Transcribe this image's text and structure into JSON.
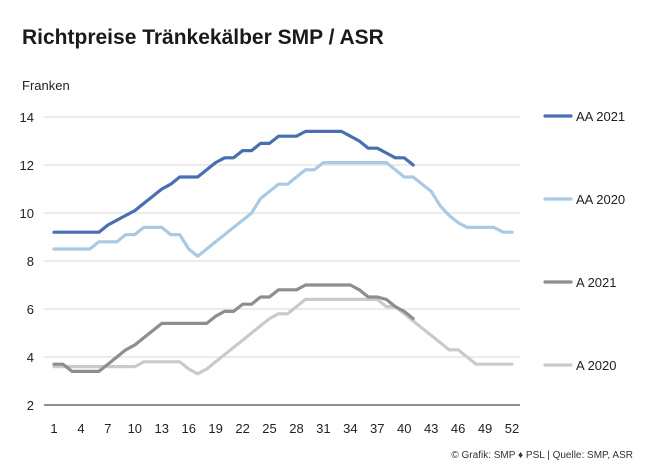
{
  "chart_data": {
    "type": "line",
    "title": "Richtpreise Tränkekälber SMP / ASR",
    "ylabel": "Franken",
    "xlabel": "",
    "ylim": [
      2,
      14
    ],
    "yticks": [
      "2",
      "4",
      "6",
      "8",
      "10",
      "12",
      "14"
    ],
    "xticks": [
      "1",
      "4",
      "7",
      "10",
      "13",
      "16",
      "19",
      "22",
      "25",
      "28",
      "31",
      "34",
      "37",
      "40",
      "43",
      "46",
      "49",
      "52"
    ],
    "grid": "horizontal",
    "legend": "right",
    "source": "© Grafik: SMP ♦ PSL | Quelle: SMP, ASR",
    "series": [
      {
        "name": "AA 2021",
        "color": "#4a6fb0",
        "x": [
          1,
          2,
          3,
          4,
          5,
          6,
          7,
          8,
          9,
          10,
          11,
          12,
          13,
          14,
          15,
          16,
          17,
          18,
          19,
          20,
          21,
          22,
          23,
          24,
          25,
          26,
          27,
          28,
          29,
          30,
          31,
          32,
          33,
          34,
          35,
          36,
          37,
          38,
          39,
          40,
          41
        ],
        "values": [
          9.2,
          9.2,
          9.2,
          9.2,
          9.2,
          9.2,
          9.5,
          9.7,
          9.9,
          10.1,
          10.4,
          10.7,
          11.0,
          11.2,
          11.5,
          11.5,
          11.5,
          11.8,
          12.1,
          12.3,
          12.3,
          12.6,
          12.6,
          12.9,
          12.9,
          13.2,
          13.2,
          13.2,
          13.4,
          13.4,
          13.4,
          13.4,
          13.4,
          13.2,
          13.0,
          12.7,
          12.7,
          12.5,
          12.3,
          12.3,
          12.0
        ]
      },
      {
        "name": "AA 2020",
        "color": "#a9cae6",
        "x": [
          1,
          2,
          3,
          4,
          5,
          6,
          7,
          8,
          9,
          10,
          11,
          12,
          13,
          14,
          15,
          16,
          17,
          18,
          19,
          20,
          21,
          22,
          23,
          24,
          25,
          26,
          27,
          28,
          29,
          30,
          31,
          32,
          33,
          34,
          35,
          36,
          37,
          38,
          39,
          40,
          41,
          42,
          43,
          44,
          45,
          46,
          47,
          48,
          49,
          50,
          51,
          52
        ],
        "values": [
          8.5,
          8.5,
          8.5,
          8.5,
          8.5,
          8.8,
          8.8,
          8.8,
          9.1,
          9.1,
          9.4,
          9.4,
          9.4,
          9.1,
          9.1,
          8.5,
          8.2,
          8.5,
          8.8,
          9.1,
          9.4,
          9.7,
          10.0,
          10.6,
          10.9,
          11.2,
          11.2,
          11.5,
          11.8,
          11.8,
          12.1,
          12.1,
          12.1,
          12.1,
          12.1,
          12.1,
          12.1,
          12.1,
          11.8,
          11.5,
          11.5,
          11.2,
          10.9,
          10.3,
          9.9,
          9.6,
          9.4,
          9.4,
          9.4,
          9.4,
          9.2,
          9.2
        ]
      },
      {
        "name": "A 2021",
        "color": "#8c8e91",
        "x": [
          1,
          2,
          3,
          4,
          5,
          6,
          7,
          8,
          9,
          10,
          11,
          12,
          13,
          14,
          15,
          16,
          17,
          18,
          19,
          20,
          21,
          22,
          23,
          24,
          25,
          26,
          27,
          28,
          29,
          30,
          31,
          32,
          33,
          34,
          35,
          36,
          37,
          38,
          39,
          40,
          41
        ],
        "values": [
          3.7,
          3.7,
          3.4,
          3.4,
          3.4,
          3.4,
          3.7,
          4.0,
          4.3,
          4.5,
          4.8,
          5.1,
          5.4,
          5.4,
          5.4,
          5.4,
          5.4,
          5.4,
          5.7,
          5.9,
          5.9,
          6.2,
          6.2,
          6.5,
          6.5,
          6.8,
          6.8,
          6.8,
          7.0,
          7.0,
          7.0,
          7.0,
          7.0,
          7.0,
          6.8,
          6.5,
          6.5,
          6.4,
          6.1,
          5.9,
          5.6
        ]
      },
      {
        "name": "A 2020",
        "color": "#c9cacc",
        "x": [
          1,
          2,
          3,
          4,
          5,
          6,
          7,
          8,
          9,
          10,
          11,
          12,
          13,
          14,
          15,
          16,
          17,
          18,
          19,
          20,
          21,
          22,
          23,
          24,
          25,
          26,
          27,
          28,
          29,
          30,
          31,
          32,
          33,
          34,
          35,
          36,
          37,
          38,
          39,
          40,
          41,
          42,
          43,
          44,
          45,
          46,
          47,
          48,
          49,
          50,
          51,
          52
        ],
        "values": [
          3.6,
          3.6,
          3.6,
          3.6,
          3.6,
          3.6,
          3.6,
          3.6,
          3.6,
          3.6,
          3.8,
          3.8,
          3.8,
          3.8,
          3.8,
          3.5,
          3.3,
          3.5,
          3.8,
          4.1,
          4.4,
          4.7,
          5.0,
          5.3,
          5.6,
          5.8,
          5.8,
          6.1,
          6.4,
          6.4,
          6.4,
          6.4,
          6.4,
          6.4,
          6.4,
          6.4,
          6.4,
          6.1,
          6.1,
          5.8,
          5.5,
          5.2,
          4.9,
          4.6,
          4.3,
          4.3,
          4.0,
          3.7,
          3.7,
          3.7,
          3.7,
          3.7
        ]
      }
    ]
  }
}
